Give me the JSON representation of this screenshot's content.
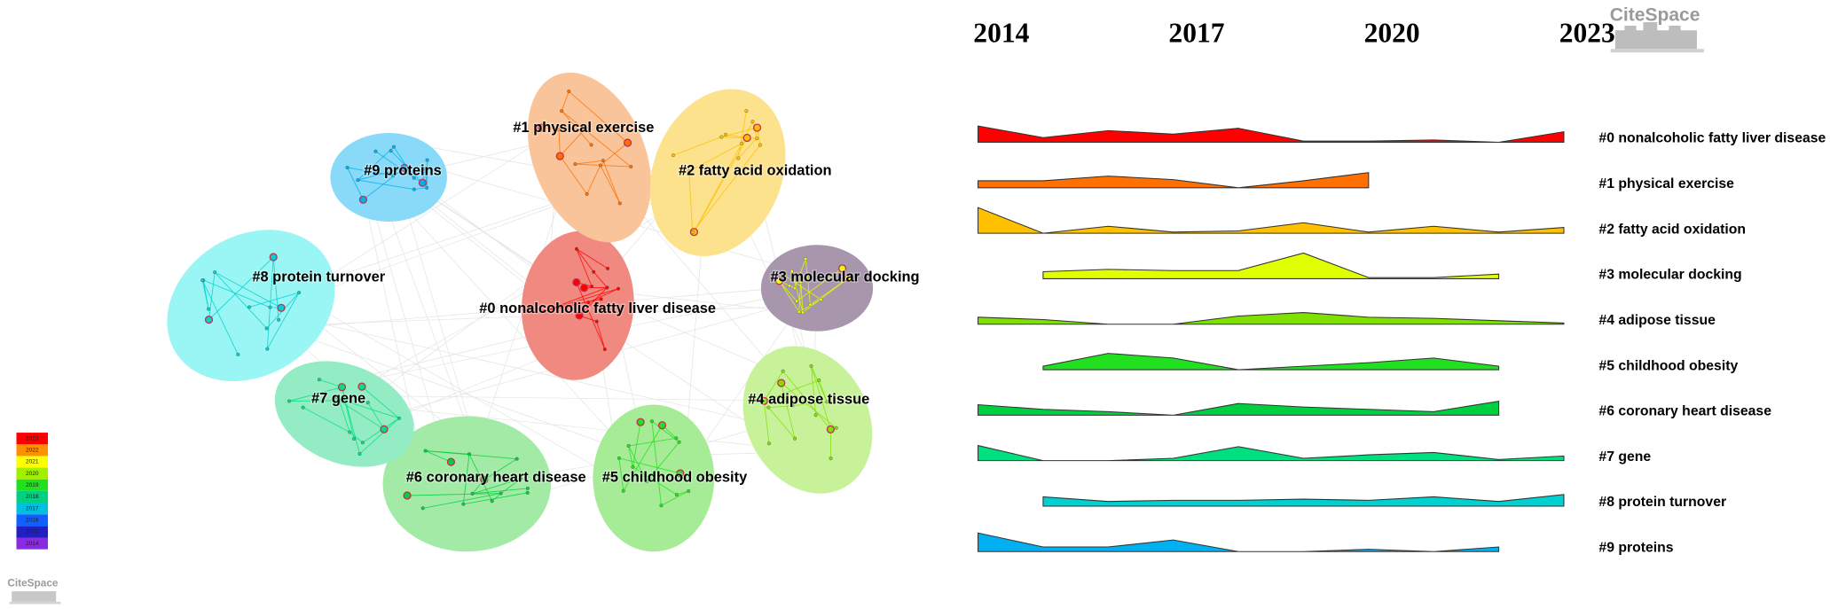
{
  "timeline": {
    "years": [
      2014,
      2015,
      2016,
      2017,
      2018,
      2019,
      2020,
      2021,
      2022,
      2023
    ],
    "axis_labels": [
      2014,
      2017,
      2020,
      2023
    ],
    "clusters": [
      {
        "label": "#0 nonalcoholic fatty liver disease",
        "color": "#ff0000",
        "blob_color": "#f08a80",
        "values": [
          14,
          4,
          10,
          7,
          12,
          1,
          1,
          2,
          0,
          9
        ]
      },
      {
        "label": "#1 physical exercise",
        "color": "#ff7000",
        "blob_color": "#f9c49a",
        "values": [
          6,
          6,
          10,
          7,
          0,
          6,
          13,
          null,
          null,
          null
        ]
      },
      {
        "label": "#2 fatty acid oxidation",
        "color": "#ffc000",
        "blob_color": "#fce28c",
        "values": [
          22,
          0,
          6,
          1,
          2,
          9,
          1,
          6,
          1,
          5
        ]
      },
      {
        "label": "#3 molecular docking",
        "color": "#e0ff00",
        "blob_color": "#a896ac",
        "values": [
          null,
          6,
          8,
          7,
          7,
          22,
          1,
          1,
          4,
          null
        ]
      },
      {
        "label": "#4 adipose tissue",
        "color": "#80e000",
        "blob_color": "#c8f29a",
        "values": [
          6,
          4,
          0,
          0,
          7,
          10,
          6,
          5,
          3,
          1
        ]
      },
      {
        "label": "#5 childhood obesity",
        "color": "#20e020",
        "blob_color": "#a6eb96",
        "values": [
          null,
          3,
          14,
          10,
          0,
          3,
          6,
          10,
          3,
          null
        ]
      },
      {
        "label": "#6 coronary heart disease",
        "color": "#00d040",
        "blob_color": "#a3eaa6",
        "values": [
          9,
          5,
          3,
          0,
          10,
          7,
          5,
          3,
          12,
          null
        ]
      },
      {
        "label": "#7 gene",
        "color": "#00e080",
        "blob_color": "#94ecc4",
        "values": [
          13,
          0,
          0,
          2,
          12,
          2,
          5,
          7,
          1,
          4
        ]
      },
      {
        "label": "#8 protein turnover",
        "color": "#00d0d0",
        "blob_color": "#9af6f4",
        "values": [
          null,
          8,
          4,
          5,
          5,
          6,
          5,
          8,
          4,
          10
        ]
      },
      {
        "label": "#9 proteins",
        "color": "#00b0f0",
        "blob_color": "#88daf8",
        "values": [
          16,
          4,
          4,
          10,
          0,
          0,
          2,
          0,
          4,
          null
        ]
      }
    ]
  },
  "legend": {
    "years": [
      2014,
      2015,
      2016,
      2017,
      2018,
      2019,
      2020,
      2021,
      2022,
      2023
    ],
    "colors": [
      "#8a2be2",
      "#2020c0",
      "#1060ff",
      "#00c0e0",
      "#00d080",
      "#20e020",
      "#a0f000",
      "#ffff00",
      "#ff9000",
      "#ff0000"
    ]
  },
  "logo": "CiteSpace"
}
